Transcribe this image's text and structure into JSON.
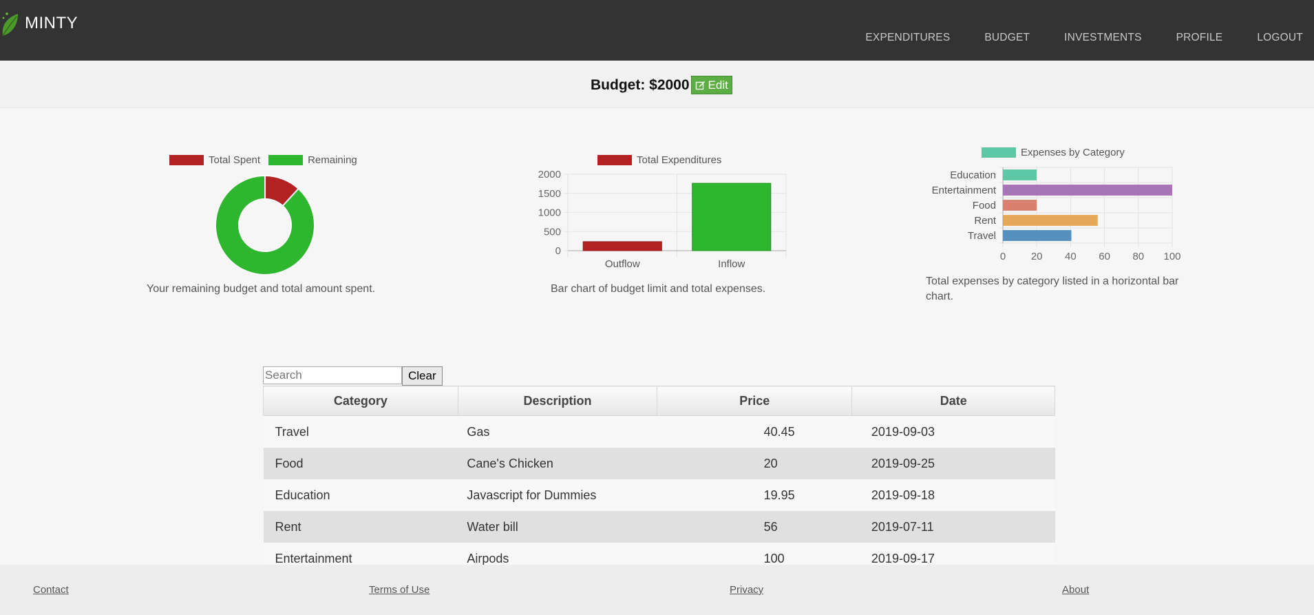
{
  "header": {
    "brand": "MINTY",
    "nav": [
      "EXPENDITURES",
      "BUDGET",
      "INVESTMENTS",
      "PROFILE",
      "LOGOUT"
    ]
  },
  "budget": {
    "label": "Budget: $2000",
    "edit_label": "Edit"
  },
  "charts": {
    "doughnut_caption": "Your remaining budget and total amount spent.",
    "bar_caption": "Bar chart of budget limit and total expenses.",
    "hbar_caption_line1": "Total expenses by category listed in a horizontal bar",
    "hbar_caption_line2": "chart."
  },
  "chart_data": [
    {
      "type": "pie",
      "subtype": "doughnut",
      "labels": [
        "Total Spent",
        "Remaining"
      ],
      "values": [
        236.4,
        1763.6
      ],
      "colors": [
        "#b22222",
        "#2fb62f"
      ],
      "legend": "top"
    },
    {
      "type": "bar",
      "categories": [
        "Outflow",
        "Inflow"
      ],
      "series": [
        {
          "name": "Total Expenditures",
          "values": [
            236.4,
            1763.6
          ],
          "colors": [
            "#b22222",
            "#2fb62f"
          ]
        }
      ],
      "yticks": [
        "0",
        "500",
        "1000",
        "1500",
        "2000"
      ],
      "ylim": [
        0,
        2000
      ],
      "legend": "top",
      "grid": true
    },
    {
      "type": "bar",
      "orientation": "horizontal",
      "categories": [
        "Education",
        "Entertainment",
        "Food",
        "Rent",
        "Travel"
      ],
      "series": [
        {
          "name": "Expenses by Category",
          "values": [
            19.95,
            100,
            20,
            56,
            40.45
          ]
        }
      ],
      "colors": [
        "#5ec8a6",
        "#a774b8",
        "#d9806e",
        "#e6a95a",
        "#5590c0"
      ],
      "xticks": [
        "0",
        "20",
        "40",
        "60",
        "80",
        "100"
      ],
      "xlim": [
        0,
        100
      ],
      "legend": "top",
      "grid": true
    }
  ],
  "table": {
    "search_placeholder": "Search",
    "clear_label": "Clear",
    "headers": [
      "Category",
      "Description",
      "Price",
      "Date"
    ],
    "rows": [
      {
        "category": "Travel",
        "description": "Gas",
        "price": "40.45",
        "date": "2019-09-03"
      },
      {
        "category": "Food",
        "description": "Cane's Chicken",
        "price": "20",
        "date": "2019-09-25"
      },
      {
        "category": "Education",
        "description": "Javascript for Dummies",
        "price": "19.95",
        "date": "2019-09-18"
      },
      {
        "category": "Rent",
        "description": "Water bill",
        "price": "56",
        "date": "2019-07-11"
      },
      {
        "category": "Entertainment",
        "description": "Airpods",
        "price": "100",
        "date": "2019-09-17"
      }
    ]
  },
  "footer": {
    "links": [
      "Contact",
      "Terms of Use",
      "Privacy",
      "About"
    ]
  }
}
